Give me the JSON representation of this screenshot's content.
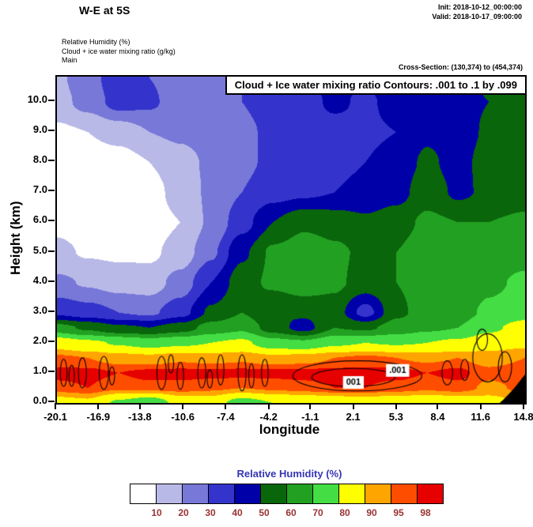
{
  "header": {
    "title": "W-E at 5S",
    "init_label": "Init: 2018-10-12_00:00:00",
    "valid_label": "Valid: 2018-10-17_09:00:00",
    "field_lines": [
      "Relative Humidity   (%)",
      "Cloud + ice water mixing ratio   (g/kg)",
      "Main"
    ],
    "cross_section": "Cross-Section: (130,374) to (454,374)"
  },
  "plot": {
    "contour_title": "Cloud + Ice water mixing ratio Contours: .001 to .1 by .099",
    "xlabel": "longitude",
    "ylabel": "Height (km)"
  },
  "colorbar": {
    "title": "Relative Humidity  (%)",
    "title_color": "#3535b5",
    "label_color": "#993333",
    "labels": [
      "10",
      "20",
      "30",
      "40",
      "50",
      "60",
      "70",
      "80",
      "90",
      "95",
      "98"
    ]
  },
  "chart_data": {
    "type": "heatmap",
    "title": "W-E at 5S",
    "subtitle": "Relative Humidity (%) filled contours with Cloud + Ice water mixing ratio line contours (.001 to .1 by .099)",
    "xlabel": "longitude",
    "ylabel": "Height (km)",
    "x_ticks": [
      "-20.1",
      "-16.9",
      "-13.8",
      "-10.6",
      "-7.4",
      "-4.2",
      "-1.1",
      "2.1",
      "5.3",
      "8.4",
      "11.6",
      "14.8"
    ],
    "y_ticks": [
      "0.0",
      "1.0",
      "2.0",
      "3.0",
      "4.0",
      "5.0",
      "6.0",
      "7.0",
      "8.0",
      "9.0",
      "10.0"
    ],
    "xlim": [
      -20.1,
      14.8
    ],
    "ylim": [
      0,
      10.84
    ],
    "levels": [
      10,
      20,
      30,
      40,
      50,
      60,
      70,
      80,
      90,
      95,
      98
    ],
    "colors": [
      "#ffffff",
      "#b9b9e8",
      "#7878d8",
      "#3434cc",
      "#0000a8",
      "#0a660a",
      "#22a022",
      "#44dd44",
      "#ffff00",
      "#ffa500",
      "#ff4d00",
      "#e60000"
    ],
    "grid_x": [
      -20.1,
      -17.8,
      -15.5,
      -13.2,
      -10.9,
      -8.6,
      -6.3,
      -4.0,
      -1.7,
      0.6,
      2.9,
      5.2,
      7.5,
      9.8,
      12.1,
      14.8
    ],
    "grid_z": [
      0,
      0.5,
      1.0,
      1.5,
      2.0,
      2.5,
      3.0,
      4.0,
      5.0,
      6.0,
      7.0,
      8.0,
      9.0,
      10.0,
      10.8
    ],
    "rh": [
      [
        86,
        88,
        78,
        72,
        84,
        85,
        75,
        80,
        82,
        84,
        85,
        84,
        83,
        84,
        86,
        92
      ],
      [
        97,
        98,
        96,
        97,
        97,
        96,
        95,
        96,
        97,
        98,
        98,
        97,
        96,
        97,
        94,
        96
      ],
      [
        99,
        99,
        98,
        99,
        99,
        99,
        99,
        99,
        99,
        99,
        99,
        99,
        98,
        99,
        96,
        97
      ],
      [
        96,
        95,
        93,
        92,
        94,
        93,
        94,
        92,
        93,
        95,
        96,
        95,
        94,
        95,
        93,
        95
      ],
      [
        86,
        82,
        79,
        76,
        78,
        80,
        82,
        74,
        72,
        78,
        80,
        79,
        80,
        82,
        86,
        88
      ],
      [
        64,
        58,
        52,
        50,
        55,
        64,
        68,
        55,
        46,
        60,
        58,
        64,
        68,
        70,
        78,
        84
      ],
      [
        38,
        34,
        30,
        28,
        36,
        52,
        60,
        50,
        52,
        55,
        36,
        58,
        64,
        66,
        72,
        76
      ],
      [
        22,
        19,
        16,
        15,
        24,
        40,
        56,
        62,
        66,
        62,
        56,
        60,
        64,
        62,
        68,
        72
      ],
      [
        12,
        9,
        8,
        8,
        14,
        28,
        48,
        62,
        66,
        62,
        58,
        60,
        66,
        64,
        64,
        66
      ],
      [
        8,
        6,
        5,
        5,
        10,
        22,
        36,
        50,
        58,
        56,
        52,
        56,
        62,
        60,
        60,
        62
      ],
      [
        6,
        4,
        4,
        6,
        14,
        22,
        30,
        36,
        38,
        40,
        42,
        46,
        56,
        48,
        52,
        55
      ],
      [
        5,
        4,
        5,
        10,
        16,
        22,
        28,
        32,
        35,
        38,
        40,
        44,
        52,
        46,
        55,
        58
      ],
      [
        8,
        10,
        14,
        20,
        22,
        25,
        28,
        32,
        34,
        36,
        38,
        40,
        48,
        44,
        52,
        56
      ],
      [
        16,
        24,
        34,
        32,
        24,
        26,
        30,
        34,
        36,
        42,
        38,
        44,
        42,
        46,
        50,
        54
      ],
      [
        18,
        26,
        36,
        30,
        24,
        26,
        30,
        34,
        38,
        44,
        40,
        52,
        44,
        48,
        52,
        55
      ]
    ],
    "terrain": [
      [
        12.9,
        0
      ],
      [
        13.2,
        0.12
      ],
      [
        13.6,
        0.3
      ],
      [
        14.0,
        0.5
      ],
      [
        14.4,
        0.72
      ],
      [
        14.8,
        0.95
      ],
      [
        14.8,
        0
      ]
    ],
    "cloud_contours": {
      "level": 0.001,
      "labels": [
        {
          "text": ".001",
          "x": 5.3,
          "z": 1.08
        },
        {
          "text": "001",
          "x": 2.0,
          "z": 0.68
        }
      ],
      "ellipses": [
        {
          "x": -19.6,
          "z": 1.0,
          "rx": 0.25,
          "ry": 0.45
        },
        {
          "x": -19.0,
          "z": 0.9,
          "rx": 0.2,
          "ry": 0.35
        },
        {
          "x": -18.2,
          "z": 1.0,
          "rx": 0.3,
          "ry": 0.5
        },
        {
          "x": -16.6,
          "z": 1.0,
          "rx": 0.35,
          "ry": 0.55
        },
        {
          "x": -16.0,
          "z": 0.9,
          "rx": 0.2,
          "ry": 0.3
        },
        {
          "x": -12.3,
          "z": 1.0,
          "rx": 0.35,
          "ry": 0.55
        },
        {
          "x": -11.6,
          "z": 1.3,
          "rx": 0.2,
          "ry": 0.3
        },
        {
          "x": -10.9,
          "z": 0.9,
          "rx": 0.25,
          "ry": 0.45
        },
        {
          "x": -9.3,
          "z": 1.0,
          "rx": 0.3,
          "ry": 0.5
        },
        {
          "x": -8.7,
          "z": 0.8,
          "rx": 0.2,
          "ry": 0.3
        },
        {
          "x": -7.9,
          "z": 1.1,
          "rx": 0.25,
          "ry": 0.5
        },
        {
          "x": -6.3,
          "z": 1.0,
          "rx": 0.3,
          "ry": 0.6
        },
        {
          "x": -5.6,
          "z": 0.9,
          "rx": 0.2,
          "ry": 0.4
        },
        {
          "x": -4.6,
          "z": 1.0,
          "rx": 0.25,
          "ry": 0.45
        },
        {
          "x": 2.3,
          "z": 0.9,
          "rx": 4.8,
          "ry": 0.5
        },
        {
          "x": 2.0,
          "z": 0.85,
          "rx": 3.1,
          "ry": 0.3
        },
        {
          "x": 9.0,
          "z": 1.0,
          "rx": 0.4,
          "ry": 0.4
        },
        {
          "x": 10.3,
          "z": 1.1,
          "rx": 0.3,
          "ry": 0.35
        },
        {
          "x": 12.0,
          "z": 1.5,
          "rx": 1.1,
          "ry": 0.8
        },
        {
          "x": 11.6,
          "z": 2.1,
          "rx": 0.4,
          "ry": 0.35
        },
        {
          "x": 13.3,
          "z": 1.2,
          "rx": 0.5,
          "ry": 0.5
        }
      ]
    }
  }
}
